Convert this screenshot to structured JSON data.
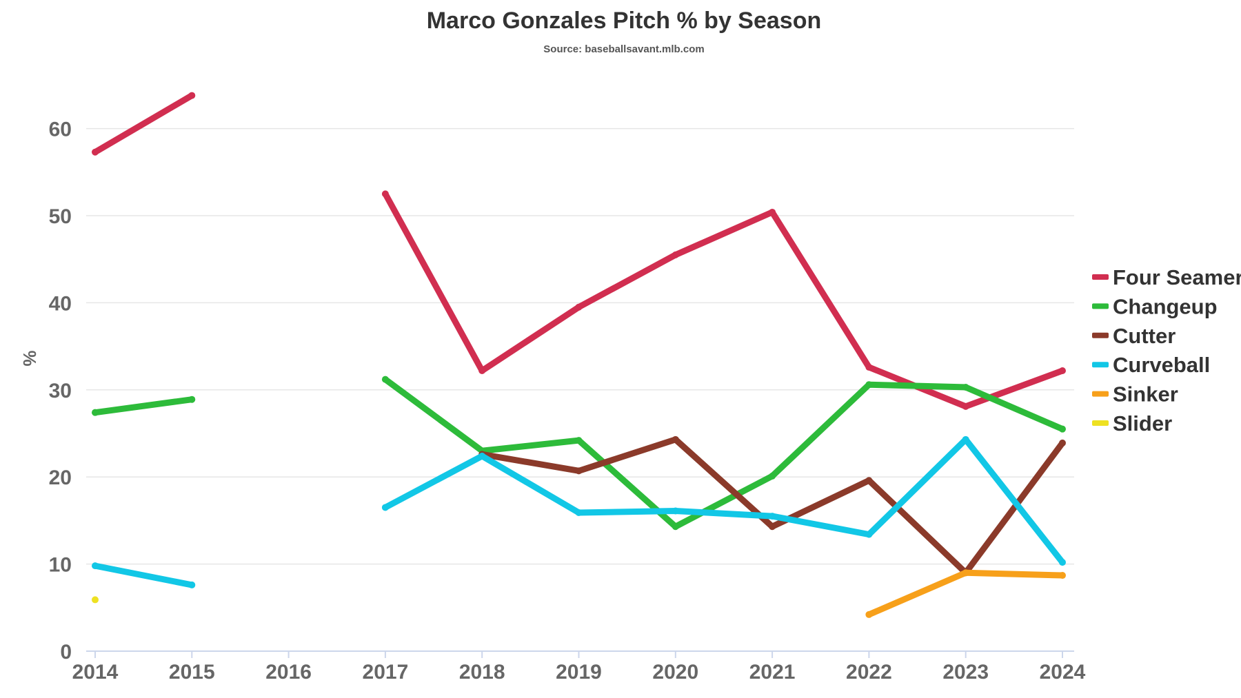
{
  "chart_data": {
    "type": "line",
    "title": "Marco Gonzales Pitch % by Season",
    "subtitle": "Source: baseballsavant.mlb.com",
    "xlabel": "",
    "ylabel": "%",
    "categories": [
      "2014",
      "2015",
      "2016",
      "2017",
      "2018",
      "2019",
      "2020",
      "2021",
      "2022",
      "2023",
      "2024"
    ],
    "yticks": [
      "0",
      "10",
      "20",
      "30",
      "40",
      "50",
      "60"
    ],
    "ylim": [
      0,
      65
    ],
    "grid": true,
    "legend_position": "right",
    "series": [
      {
        "name": "Four Seamer",
        "color": "#d12e50",
        "values": [
          57.3,
          63.8,
          null,
          52.5,
          32.2,
          39.5,
          45.5,
          50.4,
          32.6,
          28.1,
          32.2
        ]
      },
      {
        "name": "Changeup",
        "color": "#2dbb3a",
        "values": [
          27.4,
          28.9,
          null,
          31.2,
          23.0,
          24.2,
          14.3,
          20.1,
          30.6,
          30.3,
          25.5
        ]
      },
      {
        "name": "Cutter",
        "color": "#8b3a2a",
        "values": [
          null,
          null,
          null,
          null,
          22.6,
          20.7,
          24.3,
          14.3,
          19.6,
          9.0,
          23.9
        ]
      },
      {
        "name": "Curveball",
        "color": "#12c7e6",
        "values": [
          9.8,
          7.6,
          null,
          16.5,
          22.4,
          15.9,
          16.1,
          15.5,
          13.4,
          24.3,
          10.2
        ]
      },
      {
        "name": "Sinker",
        "color": "#f7a01a",
        "values": [
          null,
          null,
          null,
          null,
          null,
          null,
          null,
          null,
          4.2,
          9.0,
          8.7
        ]
      },
      {
        "name": "Slider",
        "color": "#eee122",
        "values": [
          5.9,
          null,
          null,
          null,
          null,
          null,
          null,
          null,
          null,
          null,
          null
        ]
      }
    ]
  }
}
